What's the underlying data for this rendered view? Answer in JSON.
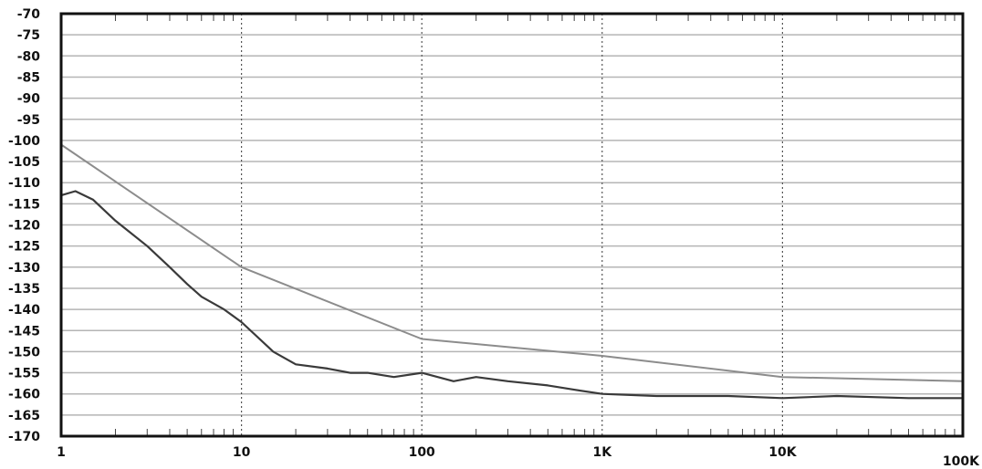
{
  "chart_data": {
    "type": "line",
    "title": "",
    "xlabel": "",
    "ylabel": "",
    "xscale": "log",
    "xlim": [
      1,
      100000
    ],
    "ylim": [
      -170,
      -70
    ],
    "grid": true,
    "legend": "none",
    "x_ticks": [
      {
        "value": 1,
        "label": "1"
      },
      {
        "value": 10,
        "label": "10"
      },
      {
        "value": 100,
        "label": "100"
      },
      {
        "value": 1000,
        "label": "1K"
      },
      {
        "value": 10000,
        "label": "10K"
      },
      {
        "value": 100000,
        "label": "100K"
      }
    ],
    "y_ticks": [
      {
        "value": -70,
        "label": "-70"
      },
      {
        "value": -75,
        "label": "-75"
      },
      {
        "value": -80,
        "label": "-80"
      },
      {
        "value": -85,
        "label": "-85"
      },
      {
        "value": -90,
        "label": "-90"
      },
      {
        "value": -95,
        "label": "-95"
      },
      {
        "value": -100,
        "label": "-100"
      },
      {
        "value": -105,
        "label": "-105"
      },
      {
        "value": -110,
        "label": "-110"
      },
      {
        "value": -115,
        "label": "-115"
      },
      {
        "value": -120,
        "label": "-120"
      },
      {
        "value": -125,
        "label": "-125"
      },
      {
        "value": -130,
        "label": "-130"
      },
      {
        "value": -135,
        "label": "-135"
      },
      {
        "value": -140,
        "label": "-140"
      },
      {
        "value": -145,
        "label": "-145"
      },
      {
        "value": -150,
        "label": "-150"
      },
      {
        "value": -155,
        "label": "-155"
      },
      {
        "value": -160,
        "label": "-160"
      },
      {
        "value": -165,
        "label": "-165"
      },
      {
        "value": -170,
        "label": "-170"
      }
    ],
    "series": [
      {
        "color": "#8c8c8c",
        "x": [
          1,
          10,
          100,
          1000,
          10000,
          100000
        ],
        "y": [
          -101,
          -130,
          -147,
          -151,
          -156,
          -157
        ]
      },
      {
        "color": "#3a3a3a",
        "x": [
          1,
          1.2,
          1.5,
          2,
          3,
          4,
          5,
          6,
          8,
          10,
          15,
          20,
          30,
          40,
          50,
          70,
          100,
          150,
          200,
          300,
          500,
          700,
          1000,
          2000,
          5000,
          10000,
          20000,
          50000,
          100000
        ],
        "y": [
          -113,
          -112,
          -114,
          -119,
          -125,
          -130,
          -134,
          -137,
          -140,
          -143,
          -150,
          -153,
          -154,
          -155,
          -155,
          -156,
          -155,
          -157,
          -156,
          -157,
          -158,
          -159,
          -160,
          -160.5,
          -160.5,
          -161,
          -160.5,
          -161,
          -161
        ]
      }
    ]
  }
}
